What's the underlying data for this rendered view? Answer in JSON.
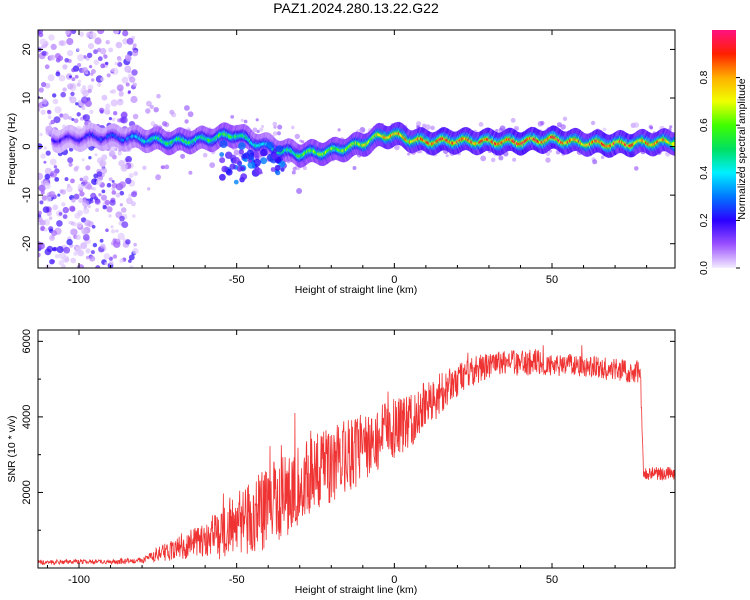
{
  "title": "PAZ1.2024.280.13.22.G22",
  "chart_data": [
    {
      "type": "heatmap",
      "title": "PAZ1.2024.280.13.22.G22",
      "xlabel": "Height of straight line (km)",
      "ylabel": "Frequency (Hz)",
      "xlim": [
        -113,
        89
      ],
      "ylim": [
        -25,
        24
      ],
      "xticks": [
        -100,
        -50,
        0,
        50
      ],
      "yticks": [
        -20,
        -10,
        0,
        10,
        20
      ],
      "colorbar": {
        "label": "Normalized spectral amplitude",
        "range": [
          0,
          1
        ],
        "ticks": [
          "0.0",
          "0.2",
          "0.4",
          "0.6",
          "0.8"
        ]
      },
      "ridge": {
        "description": "dominant frequency track vs height",
        "x": [
          -105,
          -95,
          -85,
          -78,
          -70,
          -60,
          -55,
          -50,
          -45,
          -40,
          -35,
          -30,
          -20,
          -10,
          -5,
          0,
          5,
          10,
          20,
          30,
          40,
          50,
          60,
          70,
          80,
          89
        ],
        "y": [
          1.5,
          2.0,
          1.8,
          1.5,
          1.0,
          1.5,
          2.0,
          2.5,
          1.0,
          0.0,
          -1.0,
          -1.5,
          -1.0,
          0.5,
          2.0,
          2.5,
          1.5,
          1.0,
          1.2,
          1.0,
          1.0,
          1.5,
          0.8,
          0.5,
          0.8,
          1.0
        ],
        "peak_amplitude": [
          0.2,
          0.25,
          0.3,
          0.45,
          0.55,
          0.55,
          0.6,
          0.55,
          0.5,
          0.45,
          0.5,
          0.6,
          0.65,
          0.7,
          0.75,
          0.8,
          0.85,
          0.85,
          0.9,
          0.85,
          0.95,
          0.9,
          0.85,
          0.9,
          0.85,
          0.8
        ]
      },
      "noise_region_x": [
        -113,
        -82
      ]
    },
    {
      "type": "line",
      "xlabel": "Height of straight line (km)",
      "ylabel": "SNR (10 * v/v)",
      "xlim": [
        -113,
        89
      ],
      "ylim": [
        0,
        6300
      ],
      "xticks": [
        -100,
        -50,
        0,
        50
      ],
      "yticks": [
        2000,
        4000,
        6000
      ],
      "color": "#ef3333",
      "series": [
        {
          "x": [
            -113,
            -100,
            -90,
            -80,
            -75,
            -70,
            -65,
            -60,
            -55,
            -50,
            -45,
            -40,
            -35,
            -30,
            -25,
            -20,
            -15,
            -10,
            -5,
            0,
            5,
            10,
            15,
            20,
            25,
            30,
            35,
            40,
            45,
            50,
            55,
            60,
            65,
            70,
            75,
            78,
            79,
            80,
            85,
            89
          ],
          "y": [
            150,
            170,
            160,
            200,
            350,
            500,
            650,
            750,
            900,
            1200,
            1400,
            1600,
            1900,
            2150,
            2450,
            2700,
            2950,
            3200,
            3450,
            3650,
            3900,
            4300,
            4650,
            5000,
            5200,
            5350,
            5450,
            5400,
            5450,
            5350,
            5400,
            5350,
            5300,
            5250,
            5200,
            5200,
            2600,
            2500,
            2500,
            2500
          ],
          "noise_amplitude": [
            60,
            60,
            60,
            80,
            200,
            300,
            400,
            500,
            700,
            900,
            1000,
            1100,
            1100,
            1100,
            1100,
            1000,
            1000,
            900,
            850,
            800,
            700,
            650,
            550,
            450,
            400,
            350,
            350,
            350,
            350,
            300,
            300,
            300,
            300,
            300,
            300,
            300,
            180,
            180,
            180,
            180
          ]
        }
      ]
    }
  ]
}
